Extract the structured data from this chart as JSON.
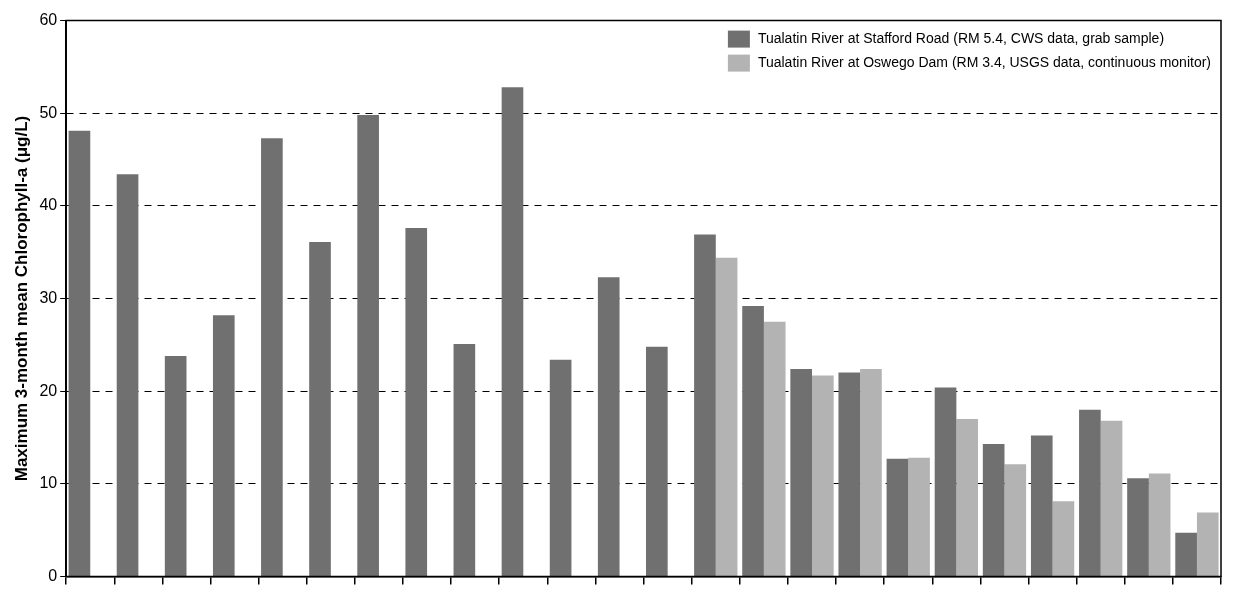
{
  "chart_data": {
    "type": "bar",
    "ylabel": "Maximum 3-month mean Chlorophyll-a (μg/L)",
    "categories": [
      null,
      null,
      null,
      null,
      null,
      null,
      null,
      null,
      null,
      null,
      null,
      null,
      null,
      null,
      null,
      null,
      null,
      null,
      null,
      null,
      null,
      null,
      null,
      null
    ],
    "series": [
      {
        "name": "Tualatin River at Stafford Road (RM 5.4, CWS data, grab sample)",
        "color": "#707070",
        "values": [
          48.1,
          43.4,
          23.8,
          28.2,
          47.3,
          36.1,
          49.8,
          37.6,
          25.1,
          52.8,
          23.4,
          32.3,
          24.8,
          36.9,
          29.2,
          22.4,
          22.0,
          12.7,
          20.4,
          14.3,
          15.2,
          18.0,
          10.6,
          4.7
        ]
      },
      {
        "name": "Tualatin River at Oswego Dam (RM 3.4, USGS data, continuous monitor)",
        "color": "#b3b3b3",
        "values": [
          null,
          null,
          null,
          null,
          null,
          null,
          null,
          null,
          null,
          null,
          null,
          null,
          null,
          34.4,
          27.5,
          21.7,
          22.4,
          12.8,
          17.0,
          12.1,
          8.1,
          16.8,
          11.1,
          6.9
        ]
      }
    ],
    "ylim": [
      0,
      60
    ],
    "yticks": [
      0,
      10,
      20,
      30,
      40,
      50,
      60
    ],
    "grid": "y",
    "legend": "top right",
    "tick_labels": "y"
  }
}
